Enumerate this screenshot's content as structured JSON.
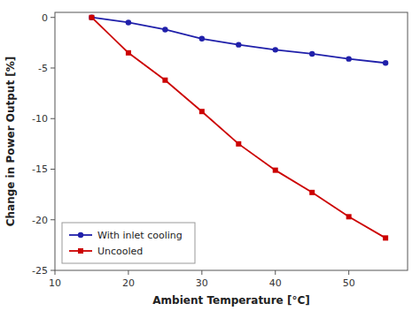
{
  "chart_data": {
    "type": "line",
    "x": [
      15,
      20,
      25,
      30,
      35,
      40,
      45,
      50,
      55
    ],
    "series": [
      {
        "name": "With inlet cooling",
        "color": "#2020aa",
        "marker": "circle",
        "values": [
          0,
          -0.5,
          -1.2,
          -2.1,
          -2.7,
          -3.2,
          -3.6,
          -4.1,
          -4.5
        ]
      },
      {
        "name": "Uncooled",
        "color": "#cc0000",
        "marker": "square",
        "values": [
          0,
          -3.5,
          -6.2,
          -9.3,
          -12.5,
          -15.1,
          -17.3,
          -19.7,
          -21.8
        ]
      }
    ],
    "xlabel": "Ambient Temperature [°C]",
    "ylabel": "Change in Power Output [%]",
    "xlim": [
      10,
      58
    ],
    "ylim": [
      -25,
      0.5
    ],
    "xticks": [
      10,
      20,
      30,
      40,
      50
    ],
    "yticks": [
      0,
      -5,
      -10,
      -15,
      -20,
      -25
    ],
    "legend": "lower left"
  }
}
